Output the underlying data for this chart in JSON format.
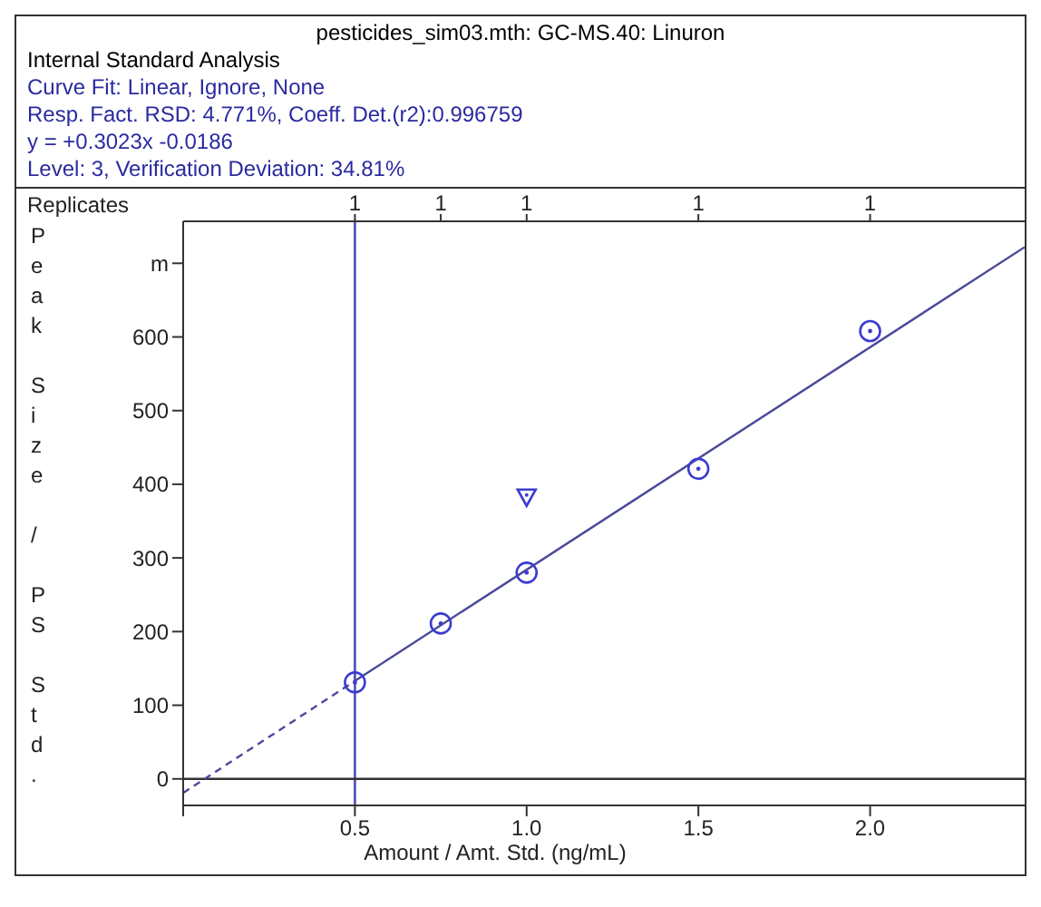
{
  "chart_data": {
    "type": "scatter",
    "title": "pesticides_sim03.mth:  GC-MS.40:  Linuron",
    "subtitle": "Internal Standard Analysis",
    "annotations": [
      "Curve Fit: Linear, Ignore, None",
      "Resp. Fact. RSD:  4.771%,    Coeff. Det.(r2):0.996759",
      "y =  +0.3023x -0.0186",
      "Level:  3,  Verification Deviation:  34.81%",
      "1",
      "1",
      "1",
      "1",
      "1"
    ],
    "xlabel": "Amount / Amt. Std. (ng/mL)",
    "ylabel": "Peak Size / PS Std.",
    "x2label": "Replicates",
    "xlim": [
      0,
      2.45
    ],
    "xticks": [
      {
        "value": 0,
        "label": null
      },
      0.5,
      {
        "value": 1,
        "label": "1.0"
      },
      1.5,
      {
        "value": 2,
        "label": "2.0"
      }
    ],
    "ylim": [
      -36,
      757
    ],
    "yticks": [
      0,
      100,
      200,
      300,
      400,
      500,
      600,
      {
        "value": 700,
        "label": "m"
      }
    ],
    "series": [
      {
        "type": "line",
        "color": "#4a4a9a",
        "line_style": "dashed",
        "marker": "none",
        "x": [
          0,
          0.5
        ],
        "values": [
          -19,
          133
        ]
      },
      {
        "type": "line",
        "color": "#4a4a9a",
        "line_style": "solid",
        "marker": "none",
        "x": [
          0.5,
          2.45
        ],
        "values": [
          133,
          722
        ]
      },
      {
        "color": "#3c3cd0",
        "marker": "circle",
        "x": [
          0.5,
          0.75,
          1,
          1.5,
          2
        ],
        "values": [
          131,
          211,
          280,
          421,
          608
        ]
      },
      {
        "color": "#3c3cd0",
        "marker": "triangle",
        "x": [
          1
        ],
        "values": [
          383
        ]
      }
    ],
    "ref_lines": [
      {
        "axis": "x",
        "value": 0.5,
        "color": "#4d4db3"
      },
      {
        "axis": "y",
        "value": 0,
        "color": "#333333"
      }
    ]
  }
}
